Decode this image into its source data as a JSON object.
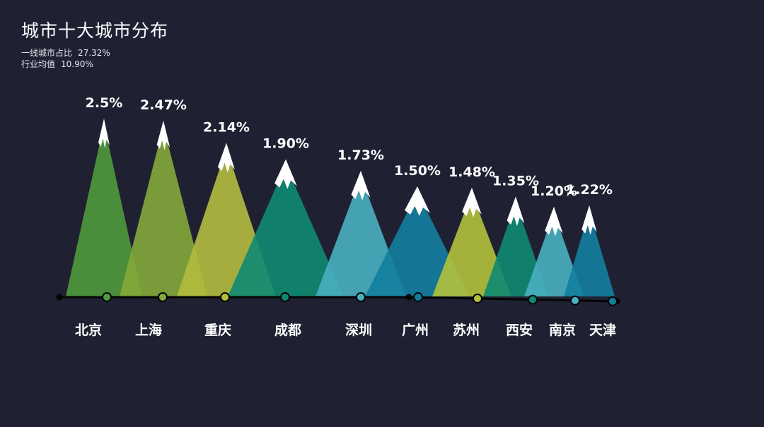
{
  "chart_data": {
    "type": "bar",
    "title": "城市十大城市分布",
    "stats": [
      {
        "label": "一线城市占比",
        "value": "27.32%"
      },
      {
        "label": "行业均值",
        "value": "10.90%"
      }
    ],
    "categories": [
      "北京",
      "上海",
      "重庆",
      "成都",
      "深圳",
      "广州",
      "苏州",
      "西安",
      "南京",
      "天津"
    ],
    "values": [
      2.5,
      2.47,
      2.14,
      1.9,
      1.73,
      1.5,
      1.48,
      1.35,
      1.2,
      1.22
    ],
    "value_labels": [
      "2.5%",
      "2.47%",
      "2.14%",
      "1.90%",
      "1.73%",
      "1.50%",
      "1.48%",
      "1.35%",
      "1.20%",
      "1.22%"
    ],
    "colors": [
      "#4f9a3c",
      "#84a83a",
      "#b3bc3e",
      "#0e8a72",
      "#49b0c0",
      "#137e9e",
      "#b3c23c",
      "#0e8a72",
      "#49b0c0",
      "#137e9e"
    ],
    "snow_color": "#ffffff",
    "axis_color": "#050505",
    "mark_style": "mountain"
  }
}
